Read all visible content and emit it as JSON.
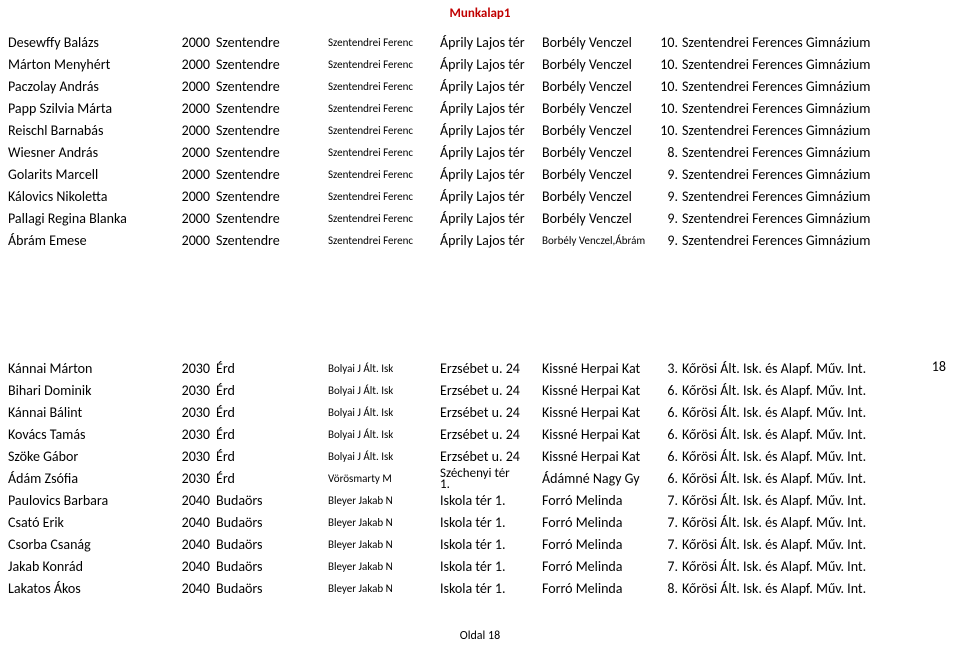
{
  "header": "Munkalap1",
  "footer": "Oldal 18",
  "right_number": "18",
  "right_number_top": 358,
  "table1": {
    "columns": [
      "name",
      "zip",
      "city",
      "inst",
      "addr",
      "leader",
      "score",
      "school"
    ],
    "rows": [
      [
        "Desewffy Balázs",
        "2000",
        "Szentendre",
        "Szentendrei Ferenc",
        "Áprily Lajos tér",
        "Borbély Venczel",
        "10.",
        "Szentendrei Ferences Gimnázium"
      ],
      [
        "Márton Menyhért",
        "2000",
        "Szentendre",
        "Szentendrei Ferenc",
        "Áprily Lajos tér",
        "Borbély Venczel",
        "10.",
        "Szentendrei Ferences Gimnázium"
      ],
      [
        "Paczolay András",
        "2000",
        "Szentendre",
        "Szentendrei Ferenc",
        "Áprily Lajos tér",
        "Borbély Venczel",
        "10.",
        "Szentendrei Ferences Gimnázium"
      ],
      [
        "Papp Szilvia Márta",
        "2000",
        "Szentendre",
        "Szentendrei Ferenc",
        "Áprily Lajos tér",
        "Borbély Venczel",
        "10.",
        "Szentendrei Ferences Gimnázium"
      ],
      [
        "Reischl Barnabás",
        "2000",
        "Szentendre",
        "Szentendrei Ferenc",
        "Áprily Lajos tér",
        "Borbély Venczel",
        "10.",
        "Szentendrei Ferences Gimnázium"
      ],
      [
        "Wiesner András",
        "2000",
        "Szentendre",
        "Szentendrei Ferenc",
        "Áprily Lajos tér",
        "Borbély Venczel",
        "8.",
        "Szentendrei Ferences Gimnázium"
      ],
      [
        "Golarits Marcell",
        "2000",
        "Szentendre",
        "Szentendrei Ferenc",
        "Áprily Lajos tér",
        "Borbély Venczel",
        "9.",
        "Szentendrei Ferences Gimnázium"
      ],
      [
        "Kálovics Nikoletta",
        "2000",
        "Szentendre",
        "Szentendrei Ferenc",
        "Áprily Lajos tér",
        "Borbély Venczel",
        "9.",
        "Szentendrei Ferences Gimnázium"
      ],
      [
        "Pallagi Regina Blanka",
        "2000",
        "Szentendre",
        "Szentendrei Ferenc",
        "Áprily Lajos tér",
        "Borbély Venczel",
        "9.",
        "Szentendrei Ferences Gimnázium"
      ],
      [
        "Ábrám Emese",
        "2000",
        "Szentendre",
        "Szentendrei Ferenc",
        "Áprily Lajos tér",
        "Borbély Venczel,Ábrám",
        "9.",
        "Szentendrei Ferences Gimnázium"
      ]
    ],
    "small_leader_rows": [
      9
    ]
  },
  "table2": {
    "columns": [
      "name",
      "zip",
      "city",
      "inst",
      "addr",
      "leader",
      "score",
      "school"
    ],
    "rows": [
      [
        "Kánnai Márton",
        "2030",
        "Érd",
        "Bolyai J Ált. Isk",
        "Erzsébet u. 24",
        "Kissné Herpai Kat",
        "3.",
        "Kőrösi Ált. Isk. és Alapf. Műv. Int."
      ],
      [
        "Bihari Dominik",
        "2030",
        "Érd",
        "Bolyai J Ált. Isk",
        "Erzsébet u. 24",
        "Kissné Herpai Kat",
        "6.",
        "Kőrösi Ált. Isk. és Alapf. Műv. Int."
      ],
      [
        "Kánnai Bálint",
        "2030",
        "Érd",
        "Bolyai J Ált. Isk",
        "Erzsébet u. 24",
        "Kissné Herpai Kat",
        "6.",
        "Kőrösi Ált. Isk. és Alapf. Műv. Int."
      ],
      [
        "Kovács Tamás",
        "2030",
        "Érd",
        "Bolyai J Ált. Isk",
        "Erzsébet u. 24",
        "Kissné Herpai Kat",
        "6.",
        "Kőrösi Ált. Isk. és Alapf. Műv. Int."
      ],
      [
        "Szöke Gábor",
        "2030",
        "Érd",
        "Bolyai J Ált. Isk",
        "Erzsébet u. 24",
        "Kissné Herpai Kat",
        "6.",
        "Kőrösi Ált. Isk. és Alapf. Műv. Int."
      ],
      [
        "Ádám Zsófia",
        "2030",
        "Érd",
        "Vörösmarty M",
        "Széchenyi tér 1.",
        "Ádámné Nagy Gy",
        "6.",
        "Kőrösi Ált. Isk. és Alapf. Műv. Int."
      ],
      [
        "Paulovics Barbara",
        "2040",
        "Budaörs",
        "Bleyer Jakab N",
        "Iskola tér 1.",
        "Forró Melinda",
        "7.",
        "Kőrösi Ált. Isk. és Alapf. Műv. Int."
      ],
      [
        "Csató Erik",
        "2040",
        "Budaörs",
        "Bleyer Jakab N",
        "Iskola tér 1.",
        "Forró Melinda",
        "7.",
        "Kőrösi Ált. Isk. és Alapf. Műv. Int."
      ],
      [
        "Csorba Csanág",
        "2040",
        "Budaörs",
        "Bleyer Jakab N",
        "Iskola tér 1.",
        "Forró Melinda",
        "7.",
        "Kőrösi Ált. Isk. és Alapf. Műv. Int."
      ],
      [
        "Jakab Konrád",
        "2040",
        "Budaörs",
        "Bleyer Jakab N",
        "Iskola tér 1.",
        "Forró Melinda",
        "7.",
        "Kőrösi Ált. Isk. és Alapf. Műv. Int."
      ],
      [
        "Lakatos Ákos",
        "2040",
        "Budaörs",
        "Bleyer Jakab N",
        "Iskola tér 1.",
        "Forró Melinda",
        "8.",
        "Kőrösi Ált. Isk. és Alapf. Műv. Int."
      ]
    ],
    "two_line_addr_rows": [
      5
    ]
  },
  "col_classes": [
    "c-name",
    "c-zip",
    "c-city",
    "c-inst",
    "c-addr",
    "c-leader",
    "c-score",
    "c-school"
  ]
}
